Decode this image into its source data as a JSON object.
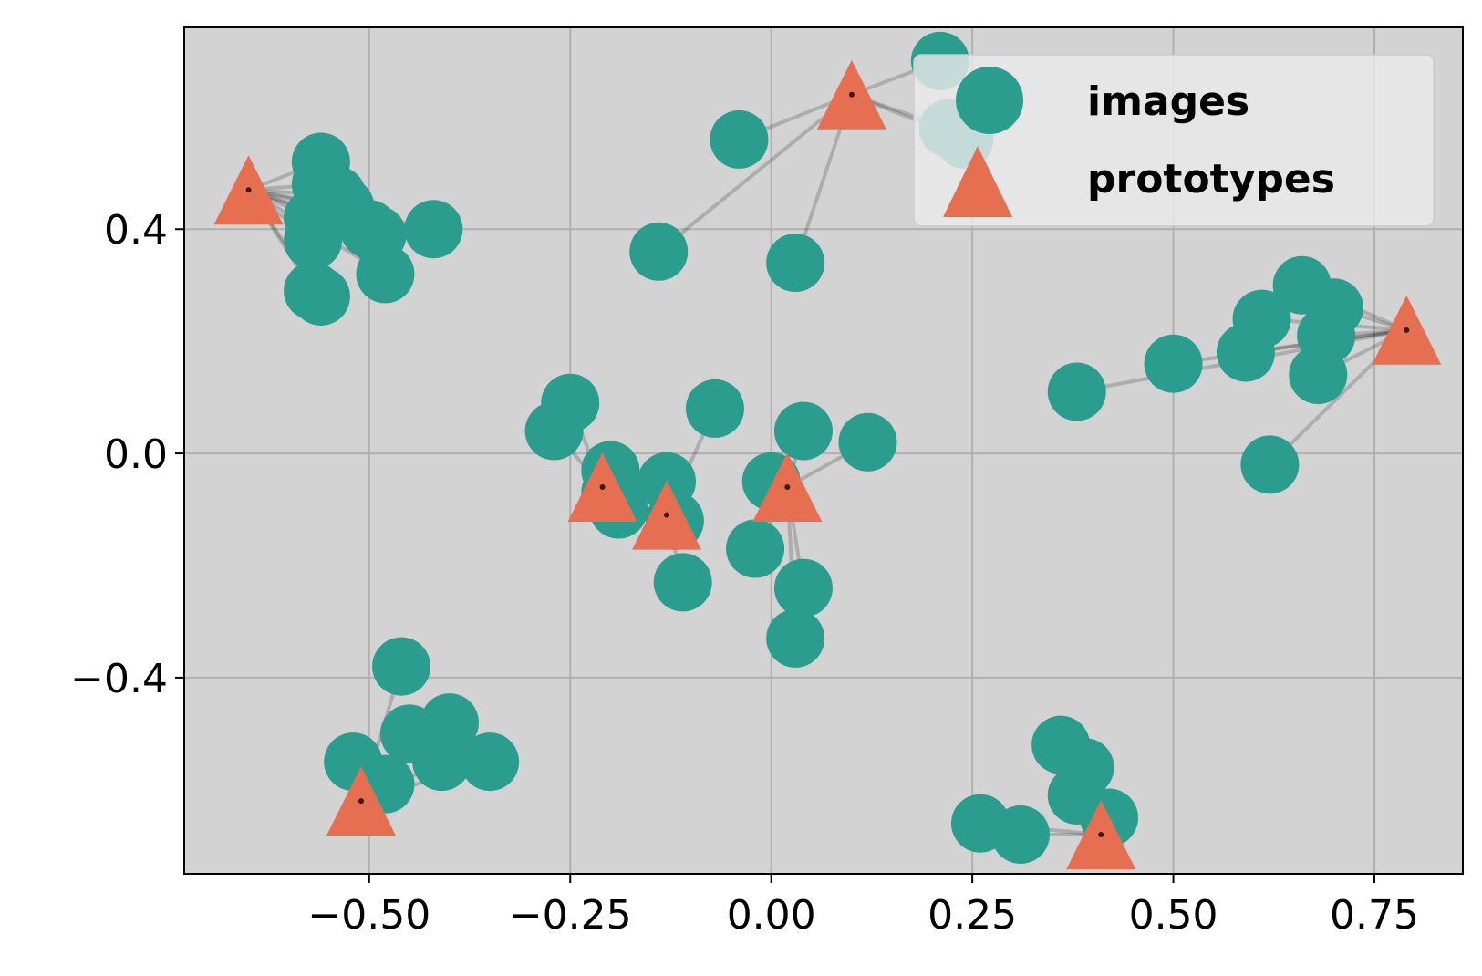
{
  "chart_data": {
    "type": "scatter",
    "xlim": [
      -0.73,
      0.86
    ],
    "ylim": [
      -0.75,
      0.76
    ],
    "x_ticks": [
      -0.5,
      -0.25,
      0.0,
      0.25,
      0.5,
      0.75
    ],
    "x_tick_labels": [
      "−0.50",
      "−0.25",
      "0.00",
      "0.25",
      "0.50",
      "0.75"
    ],
    "y_ticks": [
      -0.4,
      0.0,
      0.4
    ],
    "y_tick_labels": [
      "−0.4",
      "0.0",
      "0.4"
    ],
    "grid": true,
    "legend_position": "upper-right",
    "colors": {
      "background": "#d3d3d3",
      "grid": "#b0b0b0",
      "images": "#2a9d8f",
      "prototypes": "#e76f51",
      "links": "#000000"
    },
    "series": [
      {
        "name": "images",
        "marker": "circle",
        "points": [
          [
            -0.56,
            0.52
          ],
          [
            -0.56,
            0.48
          ],
          [
            -0.54,
            0.46
          ],
          [
            -0.53,
            0.44
          ],
          [
            -0.57,
            0.42
          ],
          [
            -0.5,
            0.4
          ],
          [
            -0.49,
            0.39
          ],
          [
            -0.42,
            0.4
          ],
          [
            -0.57,
            0.38
          ],
          [
            -0.48,
            0.32
          ],
          [
            -0.57,
            0.29
          ],
          [
            -0.56,
            0.28
          ],
          [
            -0.04,
            0.56
          ],
          [
            -0.14,
            0.36
          ],
          [
            0.03,
            0.34
          ],
          [
            0.21,
            0.7
          ],
          [
            0.22,
            0.58
          ],
          [
            0.24,
            0.56
          ],
          [
            -0.25,
            0.09
          ],
          [
            -0.27,
            0.04
          ],
          [
            -0.2,
            -0.03
          ],
          [
            -0.2,
            -0.07
          ],
          [
            -0.19,
            -0.1
          ],
          [
            -0.13,
            -0.05
          ],
          [
            -0.12,
            -0.12
          ],
          [
            -0.11,
            -0.23
          ],
          [
            -0.07,
            0.08
          ],
          [
            -0.02,
            -0.17
          ],
          [
            0.0,
            -0.05
          ],
          [
            0.04,
            0.04
          ],
          [
            0.12,
            0.02
          ],
          [
            0.04,
            -0.24
          ],
          [
            0.03,
            -0.33
          ],
          [
            0.38,
            0.11
          ],
          [
            0.5,
            0.16
          ],
          [
            0.59,
            0.18
          ],
          [
            0.61,
            0.24
          ],
          [
            0.66,
            0.3
          ],
          [
            0.7,
            0.26
          ],
          [
            0.69,
            0.21
          ],
          [
            0.68,
            0.14
          ],
          [
            0.62,
            -0.02
          ],
          [
            -0.46,
            -0.38
          ],
          [
            -0.52,
            -0.55
          ],
          [
            -0.45,
            -0.5
          ],
          [
            -0.4,
            -0.48
          ],
          [
            -0.48,
            -0.59
          ],
          [
            -0.41,
            -0.55
          ],
          [
            -0.35,
            -0.55
          ],
          [
            0.36,
            -0.52
          ],
          [
            0.39,
            -0.56
          ],
          [
            0.38,
            -0.61
          ],
          [
            0.42,
            -0.65
          ],
          [
            0.26,
            -0.66
          ],
          [
            0.31,
            -0.68
          ]
        ]
      },
      {
        "name": "prototypes",
        "marker": "triangle",
        "points": [
          [
            -0.65,
            0.47
          ],
          [
            0.1,
            0.64
          ],
          [
            -0.21,
            -0.06
          ],
          [
            -0.13,
            -0.11
          ],
          [
            0.02,
            -0.06
          ],
          [
            0.79,
            0.22
          ],
          [
            -0.51,
            -0.62
          ],
          [
            0.41,
            -0.68
          ]
        ]
      }
    ],
    "links": [
      [
        0,
        0
      ],
      [
        1,
        0
      ],
      [
        2,
        0
      ],
      [
        3,
        0
      ],
      [
        4,
        0
      ],
      [
        5,
        0
      ],
      [
        6,
        0
      ],
      [
        7,
        0
      ],
      [
        8,
        0
      ],
      [
        9,
        0
      ],
      [
        10,
        0
      ],
      [
        11,
        0
      ],
      [
        12,
        1
      ],
      [
        13,
        1
      ],
      [
        14,
        1
      ],
      [
        15,
        1
      ],
      [
        16,
        1
      ],
      [
        17,
        1
      ],
      [
        18,
        2
      ],
      [
        19,
        2
      ],
      [
        20,
        2
      ],
      [
        21,
        2
      ],
      [
        22,
        2
      ],
      [
        23,
        3
      ],
      [
        24,
        3
      ],
      [
        25,
        3
      ],
      [
        26,
        3
      ],
      [
        27,
        4
      ],
      [
        28,
        4
      ],
      [
        29,
        4
      ],
      [
        30,
        4
      ],
      [
        31,
        4
      ],
      [
        32,
        4
      ],
      [
        33,
        5
      ],
      [
        34,
        5
      ],
      [
        35,
        5
      ],
      [
        36,
        5
      ],
      [
        37,
        5
      ],
      [
        38,
        5
      ],
      [
        39,
        5
      ],
      [
        40,
        5
      ],
      [
        41,
        5
      ],
      [
        42,
        6
      ],
      [
        43,
        6
      ],
      [
        44,
        6
      ],
      [
        45,
        6
      ],
      [
        46,
        6
      ],
      [
        47,
        6
      ],
      [
        48,
        6
      ],
      [
        49,
        7
      ],
      [
        50,
        7
      ],
      [
        51,
        7
      ],
      [
        52,
        7
      ],
      [
        53,
        7
      ],
      [
        54,
        7
      ]
    ]
  }
}
